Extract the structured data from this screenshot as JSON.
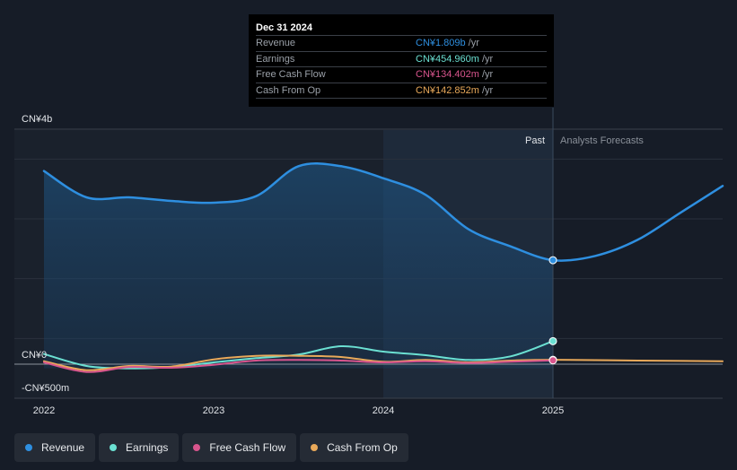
{
  "tooltip": {
    "date": "Dec 31 2024",
    "rows": [
      {
        "label": "Revenue",
        "value": "CN¥1.809b",
        "unit": "/yr",
        "color": "#2e8fe0"
      },
      {
        "label": "Earnings",
        "value": "CN¥454.960m",
        "unit": "/yr",
        "color": "#6be0d2"
      },
      {
        "label": "Free Cash Flow",
        "value": "CN¥134.402m",
        "unit": "/yr",
        "color": "#d8558d"
      },
      {
        "label": "Cash From Op",
        "value": "CN¥142.852m",
        "unit": "/yr",
        "color": "#e9a95a"
      }
    ]
  },
  "legend": [
    {
      "label": "Revenue",
      "color": "#2e8fe0"
    },
    {
      "label": "Earnings",
      "color": "#6be0d2"
    },
    {
      "label": "Free Cash Flow",
      "color": "#d8558d"
    },
    {
      "label": "Cash From Op",
      "color": "#e9a95a"
    }
  ],
  "chart_data": {
    "type": "line",
    "title": "",
    "xlabel": "",
    "ylabel": "",
    "unit": "CN¥ millions",
    "ylim": [
      -500,
      4000
    ],
    "xlim": [
      2022,
      2026
    ],
    "x_ticks": [
      2022,
      2023,
      2024,
      2025
    ],
    "x_tick_labels": [
      "2022",
      "2023",
      "2024",
      "2025"
    ],
    "y_tick_labels": [
      {
        "value": 4000,
        "label": "CN¥4b"
      },
      {
        "value": 0,
        "label": "CN¥0"
      },
      {
        "value": -500,
        "label": "-CN¥500m"
      }
    ],
    "gridlines_y": [
      3500,
      2500,
      1500,
      500
    ],
    "past_label": "Past",
    "forecast_label": "Analysts Forecasts",
    "past_end": 2025,
    "highlight_start": 2024,
    "series": [
      {
        "name": "Revenue",
        "color": "#2e8fe0",
        "x": [
          2022.0,
          2022.25,
          2022.5,
          2022.75,
          2023.0,
          2023.25,
          2023.5,
          2023.75,
          2024.0,
          2024.25,
          2024.5,
          2024.75,
          2025.0,
          2025.25,
          2025.5,
          2025.75,
          2026.0
        ],
        "y": [
          3300,
          2860,
          2860,
          2800,
          2770,
          2880,
          3380,
          3380,
          3180,
          2900,
          2330,
          2040,
          1809,
          1880,
          2150,
          2600,
          3050
        ]
      },
      {
        "name": "Earnings",
        "color": "#6be0d2",
        "x": [
          2022.0,
          2022.25,
          2022.5,
          2022.75,
          2023.0,
          2023.25,
          2023.5,
          2023.75,
          2024.0,
          2024.25,
          2024.5,
          2024.75,
          2025.0
        ],
        "y": [
          240,
          40,
          0,
          20,
          100,
          170,
          230,
          370,
          280,
          220,
          140,
          200,
          455
        ]
      },
      {
        "name": "Free Cash Flow",
        "color": "#d8558d",
        "x": [
          2022.0,
          2022.25,
          2022.5,
          2022.75,
          2023.0,
          2023.25,
          2023.5,
          2023.75,
          2024.0,
          2024.25,
          2024.5,
          2024.75,
          2025.0
        ],
        "y": [
          100,
          -60,
          20,
          10,
          60,
          130,
          140,
          130,
          100,
          120,
          90,
          110,
          134
        ]
      },
      {
        "name": "Cash From Op",
        "color": "#e9a95a",
        "x": [
          2022.0,
          2022.25,
          2022.5,
          2022.75,
          2023.0,
          2023.25,
          2023.5,
          2023.75,
          2024.0,
          2024.25,
          2024.5,
          2024.75,
          2025.0,
          2025.5,
          2026.0
        ],
        "y": [
          120,
          -30,
          40,
          30,
          150,
          210,
          210,
          190,
          110,
          140,
          100,
          130,
          143,
          130,
          120
        ]
      }
    ]
  }
}
